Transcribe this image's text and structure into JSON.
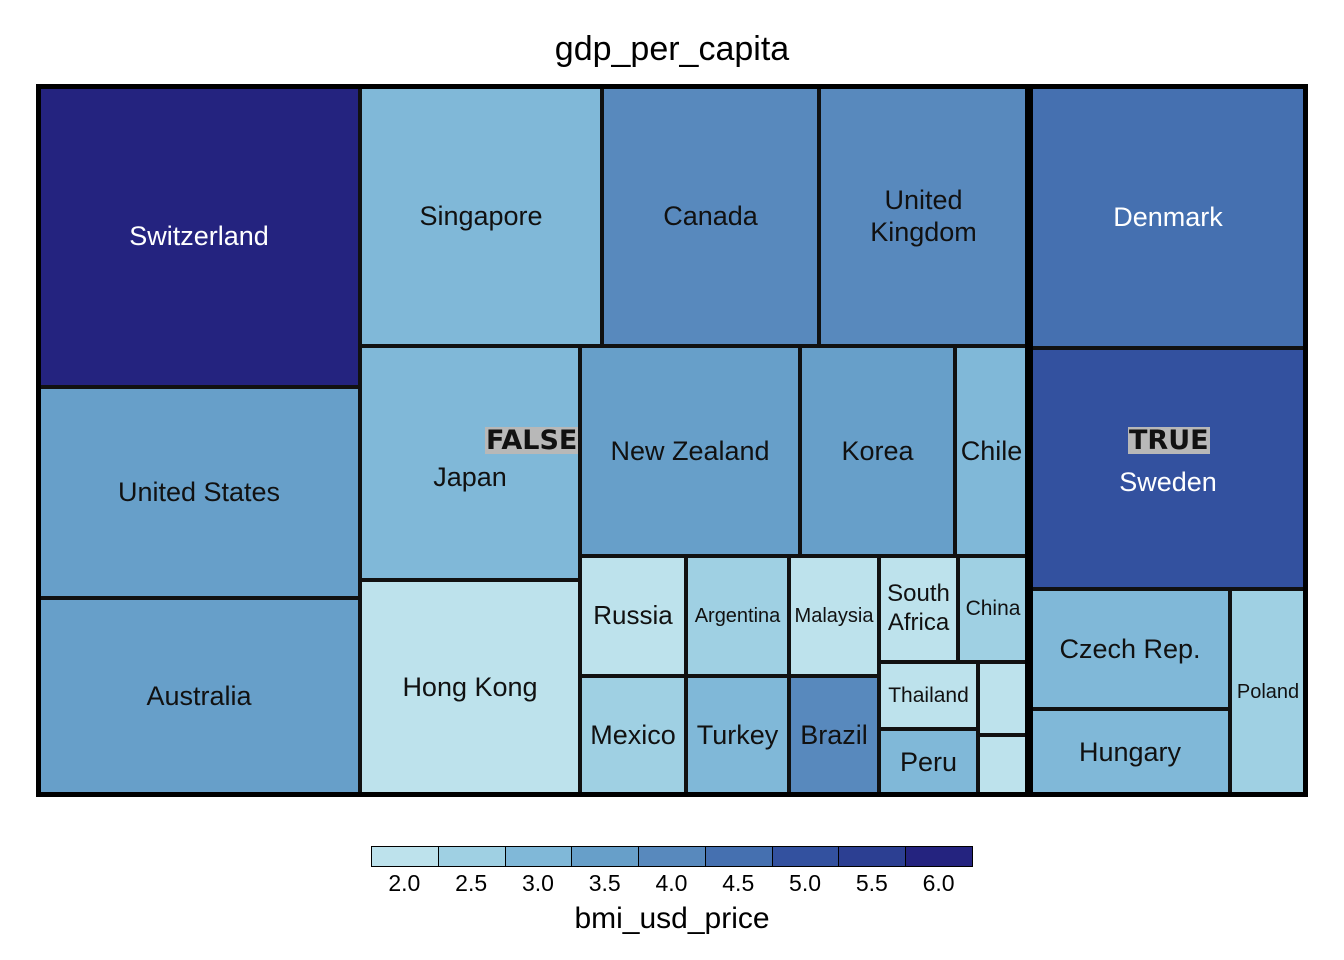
{
  "chart_data": {
    "type": "treemap",
    "title": "gdp_per_capita",
    "size_variable": "gdp_per_capita",
    "color_variable": "bmi_usd_price",
    "groups": [
      {
        "label": "FALSE",
        "tiles": [
          {
            "name": "Switzerland",
            "value": 6.35
          },
          {
            "name": "United States",
            "value": 3.55
          },
          {
            "name": "Australia",
            "value": 3.6
          },
          {
            "name": "Singapore",
            "value": 2.9
          },
          {
            "name": "Canada",
            "value": 4.1
          },
          {
            "name": "United\nKingdom",
            "value": 3.85
          },
          {
            "name": "Japan",
            "value": 2.75
          },
          {
            "name": "Hong Kong",
            "value": 1.95
          },
          {
            "name": "New Zealand",
            "value": 3.7
          },
          {
            "name": "Korea",
            "value": 3.3
          },
          {
            "name": "Chile",
            "value": 3.05
          },
          {
            "name": "Russia",
            "value": 1.95
          },
          {
            "name": "Argentina",
            "value": 2.7
          },
          {
            "name": "Malaysia",
            "value": 1.9
          },
          {
            "name": "South\nAfrica",
            "value": 2.05
          },
          {
            "name": "China",
            "value": 2.3
          },
          {
            "name": "Thailand",
            "value": 2.2
          },
          {
            "name": "",
            "value": 2.05
          },
          {
            "name": "Mexico",
            "value": 2.4
          },
          {
            "name": "Turkey",
            "value": 3.2
          },
          {
            "name": "Brazil",
            "value": 4.05
          },
          {
            "name": "Peru",
            "value": 3.1
          },
          {
            "name": "",
            "value": 2.2
          }
        ]
      },
      {
        "label": "TRUE",
        "tiles": [
          {
            "name": "Denmark",
            "value": 4.7
          },
          {
            "name": "Sweden",
            "value": 5.0
          },
          {
            "name": "Czech Rep.",
            "value": 3.05
          },
          {
            "name": "Hungary",
            "value": 3.1
          },
          {
            "name": "Poland",
            "value": 2.4
          }
        ]
      }
    ],
    "legend": {
      "title": "bmi_usd_price",
      "ticks": [
        "2.0",
        "2.5",
        "3.0",
        "3.5",
        "4.0",
        "4.5",
        "5.0",
        "5.5",
        "6.0"
      ],
      "colors": [
        "#bde2ec",
        "#9fd0e3",
        "#80b8d8",
        "#679fc9",
        "#5889bd",
        "#4570b0",
        "#33519f",
        "#2c3f92",
        "#24237f"
      ],
      "min": 1.75,
      "max": 6.25,
      "placement": "bottom"
    }
  }
}
